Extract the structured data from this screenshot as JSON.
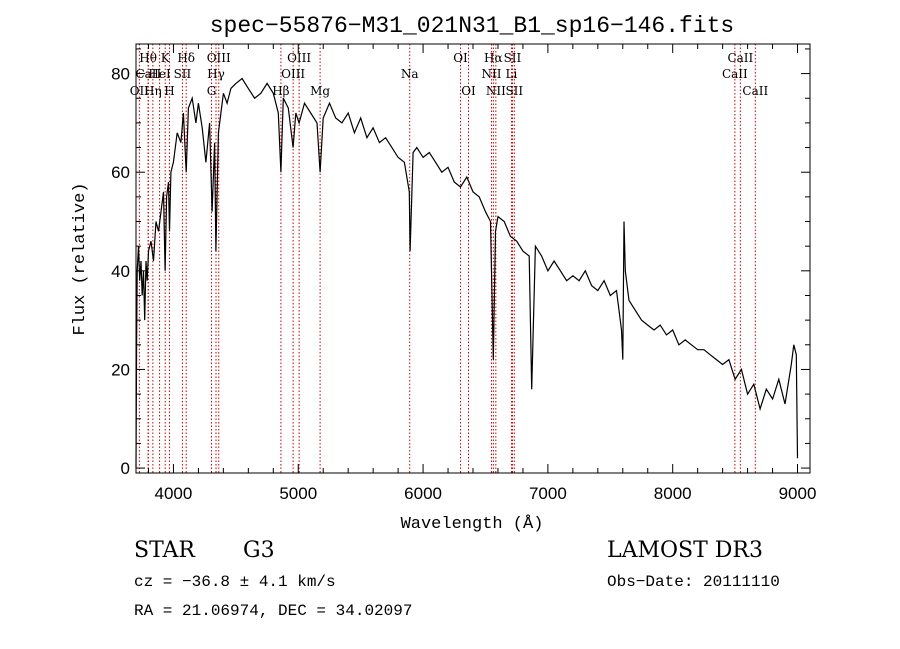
{
  "chart_data": {
    "type": "line",
    "title": "spec−55876−M31_021N31_B1_sp16−146.fits",
    "xlabel": "Wavelength (Å)",
    "ylabel": "Flux (relative)",
    "xlim": [
      3700,
      9100
    ],
    "ylim": [
      -1,
      86
    ],
    "xticks": [
      4000,
      5000,
      6000,
      7000,
      8000,
      9000
    ],
    "yticks": [
      0,
      20,
      40,
      60,
      80
    ],
    "grid": false,
    "series": [
      {
        "name": "flux",
        "x": [
          3700,
          3705,
          3710,
          3720,
          3730,
          3740,
          3750,
          3760,
          3770,
          3780,
          3790,
          3800,
          3820,
          3840,
          3860,
          3880,
          3900,
          3920,
          3933,
          3945,
          3960,
          3968,
          3980,
          4000,
          4030,
          4060,
          4080,
          4102,
          4120,
          4150,
          4180,
          4200,
          4230,
          4260,
          4290,
          4310,
          4330,
          4340,
          4360,
          4380,
          4400,
          4430,
          4460,
          4500,
          4550,
          4600,
          4650,
          4700,
          4750,
          4800,
          4840,
          4861,
          4880,
          4920,
          4959,
          4980,
          5007,
          5050,
          5100,
          5150,
          5175,
          5200,
          5250,
          5300,
          5350,
          5400,
          5450,
          5500,
          5550,
          5600,
          5650,
          5700,
          5750,
          5800,
          5850,
          5890,
          5896,
          5920,
          5950,
          6000,
          6050,
          6100,
          6150,
          6200,
          6250,
          6300,
          6350,
          6400,
          6450,
          6500,
          6540,
          6563,
          6580,
          6600,
          6650,
          6700,
          6750,
          6800,
          6850,
          6870,
          6900,
          6950,
          7000,
          7050,
          7100,
          7150,
          7200,
          7250,
          7300,
          7350,
          7400,
          7450,
          7500,
          7550,
          7590,
          7600,
          7610,
          7620,
          7650,
          7700,
          7750,
          7800,
          7850,
          7900,
          7950,
          8000,
          8050,
          8100,
          8150,
          8200,
          8250,
          8300,
          8350,
          8400,
          8450,
          8500,
          8550,
          8600,
          8650,
          8700,
          8750,
          8800,
          8850,
          8900,
          8950,
          8970,
          8990,
          9000
        ],
        "y": [
          0,
          25,
          40,
          45,
          38,
          42,
          35,
          40,
          30,
          42,
          38,
          44,
          46,
          42,
          50,
          48,
          52,
          56,
          40,
          55,
          58,
          48,
          60,
          62,
          68,
          66,
          72,
          60,
          73,
          75,
          70,
          74,
          69,
          62,
          70,
          52,
          66,
          44,
          68,
          72,
          76,
          74,
          77,
          78,
          79,
          77,
          75,
          76,
          78,
          76,
          72,
          60,
          75,
          73,
          65,
          72,
          70,
          74,
          72,
          70,
          60,
          71,
          74,
          71,
          70,
          72,
          68,
          71,
          67,
          69,
          66,
          67,
          65,
          63,
          62,
          56,
          44,
          64,
          65,
          63,
          64,
          62,
          60,
          61,
          58,
          57,
          59,
          56,
          55,
          52,
          50,
          22,
          48,
          51,
          50,
          47,
          46,
          44,
          43,
          16,
          45,
          43,
          40,
          42,
          40,
          38,
          39,
          38,
          40,
          37,
          36,
          38,
          35,
          36,
          28,
          22,
          50,
          40,
          34,
          32,
          30,
          29,
          28,
          29,
          27,
          28,
          25,
          26,
          25,
          24,
          24,
          23,
          22,
          21,
          22,
          18,
          20,
          15,
          17,
          12,
          16,
          14,
          18,
          13,
          21,
          25,
          23,
          2
        ]
      }
    ],
    "line_markers": [
      {
        "label": "OII",
        "wavelength": 3727,
        "row": 3
      },
      {
        "label": "Hθ",
        "wavelength": 3797,
        "row": 1
      },
      {
        "label": "CaII",
        "wavelength": 3799,
        "row": 2
      },
      {
        "label": "Hη",
        "wavelength": 3835,
        "row": 3
      },
      {
        "label": "HeI",
        "wavelength": 3889,
        "row": 2
      },
      {
        "label": "K",
        "wavelength": 3934,
        "row": 1
      },
      {
        "label": "H",
        "wavelength": 3968,
        "row": 3
      },
      {
        "label": "SII",
        "wavelength": 4072,
        "row": 2
      },
      {
        "label": "Hδ",
        "wavelength": 4102,
        "row": 1
      },
      {
        "label": "G",
        "wavelength": 4305,
        "row": 3
      },
      {
        "label": "Hγ",
        "wavelength": 4341,
        "row": 2
      },
      {
        "label": "OIII",
        "wavelength": 4363,
        "row": 1
      },
      {
        "label": "Hβ",
        "wavelength": 4861,
        "row": 3
      },
      {
        "label": "OIII",
        "wavelength": 4959,
        "row": 2
      },
      {
        "label": "OIII",
        "wavelength": 5007,
        "row": 1
      },
      {
        "label": "Mg",
        "wavelength": 5175,
        "row": 3
      },
      {
        "label": "Na",
        "wavelength": 5893,
        "row": 2
      },
      {
        "label": "OI",
        "wavelength": 6300,
        "row": 1
      },
      {
        "label": "OI",
        "wavelength": 6364,
        "row": 3
      },
      {
        "label": "NII",
        "wavelength": 6548,
        "row": 2
      },
      {
        "label": "Hα",
        "wavelength": 6563,
        "row": 1
      },
      {
        "label": "NII",
        "wavelength": 6583,
        "row": 3
      },
      {
        "label": "Li",
        "wavelength": 6708,
        "row": 2
      },
      {
        "label": "SII",
        "wavelength": 6716,
        "row": 1
      },
      {
        "label": "SII",
        "wavelength": 6731,
        "row": 3
      },
      {
        "label": "CaII",
        "wavelength": 8498,
        "row": 2
      },
      {
        "label": "CaII",
        "wavelength": 8542,
        "row": 1
      },
      {
        "label": "CaII",
        "wavelength": 8662,
        "row": 3
      }
    ],
    "line_color": "#000000",
    "marker_color": "#cc0000"
  },
  "info": {
    "class": "STAR",
    "subclass": "G3",
    "survey": "LAMOST DR3",
    "cz": "cz = −36.8 ± 4.1 km/s",
    "obs_date": "Obs−Date: 20111110",
    "coords": "RA =  21.06974, DEC =  34.02097"
  }
}
